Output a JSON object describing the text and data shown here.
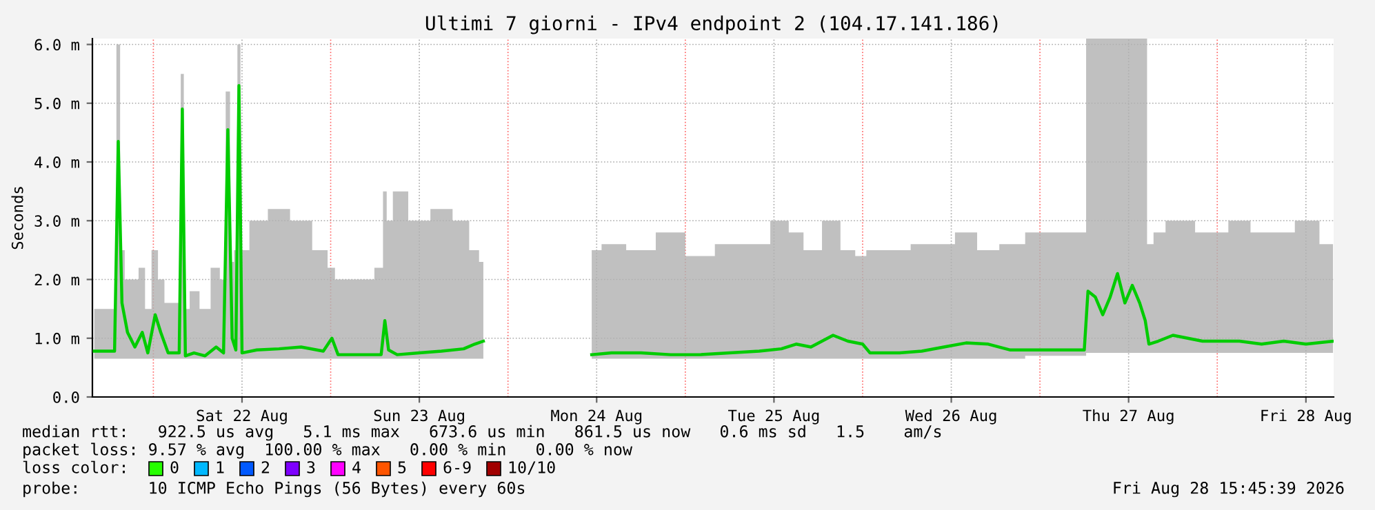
{
  "chart_data": {
    "type": "line",
    "title": "Ultimi 7 giorni - IPv4 endpoint 2 (104.17.141.186)",
    "ylabel": "Seconds",
    "xlim": [
      "2026-08-21T15:45",
      "2026-08-28T15:45"
    ],
    "xticks": [
      {
        "value": "2026-08-22T12:00",
        "label": "Sat 22 Aug"
      },
      {
        "value": "2026-08-23T12:00",
        "label": "Sun 23 Aug"
      },
      {
        "value": "2026-08-24T12:00",
        "label": "Mon 24 Aug"
      },
      {
        "value": "2026-08-25T12:00",
        "label": "Tue 25 Aug"
      },
      {
        "value": "2026-08-26T12:00",
        "label": "Wed 26 Aug"
      },
      {
        "value": "2026-08-27T12:00",
        "label": "Thu 27 Aug"
      },
      {
        "value": "2026-08-28T12:00",
        "label": "Fri 28 Aug"
      }
    ],
    "ylim": [
      0,
      6.1
    ],
    "yticks": [
      {
        "value": 0,
        "label": "0.0"
      },
      {
        "value": 1,
        "label": "1.0 m"
      },
      {
        "value": 2,
        "label": "2.0 m"
      },
      {
        "value": 3,
        "label": "3.0 m"
      },
      {
        "value": 4,
        "label": "4.0 m"
      },
      {
        "value": 5,
        "label": "5.0 m"
      },
      {
        "value": 6,
        "label": "6.0 m"
      }
    ],
    "grid": true,
    "marker": "none",
    "line_style": "solid",
    "ref_lines": [
      {
        "axis": "x",
        "value": "2026-08-22T00:00",
        "color": "#ff0000",
        "line_style": "dotted"
      },
      {
        "axis": "x",
        "value": "2026-08-23T00:00",
        "color": "#ff0000",
        "line_style": "dotted"
      },
      {
        "axis": "x",
        "value": "2026-08-24T00:00",
        "color": "#ff0000",
        "line_style": "dotted"
      },
      {
        "axis": "x",
        "value": "2026-08-25T00:00",
        "color": "#ff0000",
        "line_style": "dotted"
      },
      {
        "axis": "x",
        "value": "2026-08-26T00:00",
        "color": "#ff0000",
        "line_style": "dotted"
      },
      {
        "axis": "x",
        "value": "2026-08-27T00:00",
        "color": "#ff0000",
        "line_style": "dotted"
      },
      {
        "axis": "x",
        "value": "2026-08-28T00:00",
        "color": "#ff0000",
        "line_style": "dotted"
      }
    ],
    "series": [
      {
        "color": "#00cc00",
        "x": [
          "2026-08-21T16:00",
          "2026-08-21T18:45",
          "2026-08-21T19:15",
          "2026-08-21T19:45",
          "2026-08-21T20:30",
          "2026-08-21T21:30",
          "2026-08-21T22:30",
          "2026-08-21T23:15",
          "2026-08-22T00:15",
          "2026-08-22T01:00",
          "2026-08-22T02:00",
          "2026-08-22T03:30",
          "2026-08-22T03:55",
          "2026-08-22T04:20",
          "2026-08-22T05:30",
          "2026-08-22T07:00",
          "2026-08-22T08:30",
          "2026-08-22T09:30",
          "2026-08-22T10:05",
          "2026-08-22T10:40",
          "2026-08-22T11:10",
          "2026-08-22T11:35",
          "2026-08-22T12:00",
          "2026-08-22T14:00",
          "2026-08-22T17:00",
          "2026-08-22T20:00",
          "2026-08-22T23:00",
          "2026-08-23T00:10",
          "2026-08-23T01:00",
          "2026-08-23T05:00",
          "2026-08-23T06:50",
          "2026-08-23T07:20",
          "2026-08-23T07:50",
          "2026-08-23T09:00",
          "2026-08-23T12:00",
          "2026-08-23T15:00",
          "2026-08-23T18:00",
          "2026-08-23T19:30",
          "2026-08-23T20:40",
          "2026-08-24T00:00",
          "2026-08-24T11:20",
          "2026-08-24T14:00",
          "2026-08-24T18:00",
          "2026-08-24T22:00",
          "2026-08-25T02:00",
          "2026-08-25T06:00",
          "2026-08-25T10:00",
          "2026-08-25T13:00",
          "2026-08-25T15:00",
          "2026-08-25T17:00",
          "2026-08-25T20:00",
          "2026-08-25T22:00",
          "2026-08-26T00:00",
          "2026-08-26T01:00",
          "2026-08-26T05:00",
          "2026-08-26T08:00",
          "2026-08-26T11:00",
          "2026-08-26T14:00",
          "2026-08-26T17:00",
          "2026-08-26T20:00",
          "2026-08-27T00:00",
          "2026-08-27T06:00",
          "2026-08-27T06:30",
          "2026-08-27T07:30",
          "2026-08-27T08:30",
          "2026-08-27T09:30",
          "2026-08-27T10:30",
          "2026-08-27T11:30",
          "2026-08-27T12:30",
          "2026-08-27T13:30",
          "2026-08-27T14:15",
          "2026-08-27T14:45",
          "2026-08-27T16:00",
          "2026-08-27T18:00",
          "2026-08-27T20:00",
          "2026-08-27T22:00",
          "2026-08-28T00:00",
          "2026-08-28T03:00",
          "2026-08-28T06:00",
          "2026-08-28T09:00",
          "2026-08-28T12:00",
          "2026-08-28T15:40"
        ],
        "values": [
          0.78,
          0.78,
          4.35,
          1.6,
          1.1,
          0.85,
          1.1,
          0.75,
          1.4,
          1.1,
          0.75,
          0.75,
          4.9,
          0.7,
          0.75,
          0.7,
          0.85,
          0.75,
          4.55,
          1.0,
          0.8,
          5.3,
          0.75,
          0.8,
          0.82,
          0.85,
          0.78,
          1.0,
          0.72,
          0.72,
          0.72,
          1.3,
          0.8,
          0.72,
          0.75,
          0.78,
          0.82,
          0.9,
          0.95,
          null,
          0.72,
          0.75,
          0.75,
          0.72,
          0.72,
          0.75,
          0.78,
          0.82,
          0.9,
          0.85,
          1.05,
          0.95,
          0.9,
          0.75,
          0.75,
          0.78,
          0.85,
          0.92,
          0.9,
          0.8,
          0.8,
          0.8,
          1.8,
          1.7,
          1.4,
          1.7,
          2.1,
          1.6,
          1.9,
          1.6,
          1.3,
          0.9,
          0.95,
          1.05,
          1.0,
          0.95,
          0.95,
          0.95,
          0.9,
          0.95,
          0.9,
          0.95
        ],
        "lower": [
          0.65,
          0.65,
          0.65,
          0.65,
          0.65,
          0.65,
          0.65,
          0.65,
          0.65,
          0.65,
          0.65,
          0.65,
          0.65,
          0.65,
          0.65,
          0.65,
          0.65,
          0.65,
          0.65,
          0.65,
          0.65,
          0.65,
          0.65,
          0.65,
          0.65,
          0.65,
          0.65,
          0.65,
          0.65,
          0.65,
          0.65,
          0.65,
          0.65,
          0.65,
          0.65,
          0.65,
          0.65,
          0.65,
          0.65,
          null,
          0.65,
          0.65,
          0.65,
          0.65,
          0.65,
          0.65,
          0.65,
          0.65,
          0.65,
          0.65,
          0.65,
          0.65,
          0.65,
          0.65,
          0.65,
          0.65,
          0.65,
          0.65,
          0.65,
          0.65,
          0.7,
          0.7,
          0.75,
          0.75,
          0.75,
          0.75,
          0.75,
          0.75,
          0.75,
          0.75,
          0.75,
          0.75,
          0.75,
          0.75,
          0.75,
          0.75,
          0.75,
          0.75,
          0.75,
          0.75,
          0.75,
          0.75
        ],
        "upper": [
          1.5,
          1.5,
          6.0,
          2.5,
          2.0,
          2.0,
          2.2,
          1.5,
          2.5,
          2.0,
          1.6,
          1.6,
          5.5,
          1.5,
          1.8,
          1.5,
          2.2,
          2.0,
          5.2,
          2.3,
          2.5,
          6.0,
          2.5,
          3.0,
          3.2,
          3.0,
          2.5,
          2.2,
          2.0,
          2.0,
          2.2,
          3.5,
          3.0,
          3.5,
          3.0,
          3.2,
          3.0,
          2.5,
          2.3,
          null,
          2.5,
          2.6,
          2.5,
          2.8,
          2.4,
          2.6,
          2.6,
          3.0,
          2.8,
          2.5,
          3.0,
          2.5,
          2.4,
          2.5,
          2.5,
          2.6,
          2.6,
          2.8,
          2.5,
          2.6,
          2.8,
          2.8,
          6.1,
          6.1,
          6.1,
          6.1,
          6.1,
          6.1,
          6.1,
          6.1,
          6.1,
          2.6,
          2.8,
          3.0,
          3.0,
          2.8,
          2.8,
          3.0,
          2.8,
          2.8,
          3.0,
          2.6
        ]
      }
    ],
    "annotations": [
      "median rtt:   922.5 us avg   5.1 ms max   673.6 us min   861.5 us now   0.6 ms sd   1.5    am/s",
      "packet loss: 9.57 % avg  100.00 % max   0.00 % min   0.00 % now",
      "loss color:",
      "0",
      "1",
      "2",
      "3",
      "4",
      "5",
      "6-9",
      "10/10",
      "probe:       10 ICMP Echo Pings (56 Bytes) every 60s",
      "Fri Aug 28 15:45:39 2026"
    ]
  }
}
